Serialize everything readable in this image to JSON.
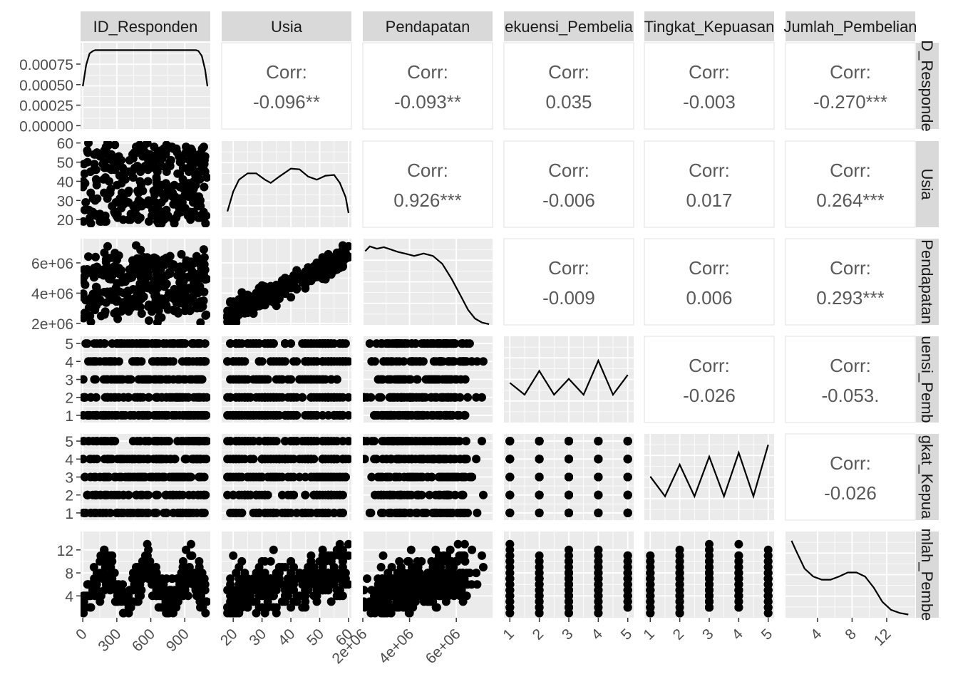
{
  "chart_data": {
    "type": "scatter",
    "variables": [
      "ID_Responden",
      "Usia",
      "Pendapatan",
      "Frekuensi_Pembelian",
      "Tingkat_Kepuasan",
      "Jumlah_Pembelian"
    ],
    "strip_labels_top": [
      "ID_Responden",
      "Usia",
      "Pendapatan",
      "ekuensi_Pembelia",
      "Tingkat_Kepuasan",
      "Jumlah_Pembelian"
    ],
    "strip_labels_right": [
      "D_Responde",
      "Usia",
      "Pendapatan",
      "uensi_Pemb",
      "gkat_Kepua",
      "mlah_Pembe"
    ],
    "correlations": [
      {
        "row": 0,
        "col": 1,
        "label": "Corr:",
        "value": "-0.096**"
      },
      {
        "row": 0,
        "col": 2,
        "label": "Corr:",
        "value": "-0.093**"
      },
      {
        "row": 0,
        "col": 3,
        "label": "Corr:",
        "value": "0.035"
      },
      {
        "row": 0,
        "col": 4,
        "label": "Corr:",
        "value": "-0.003"
      },
      {
        "row": 0,
        "col": 5,
        "label": "Corr:",
        "value": "-0.270***"
      },
      {
        "row": 1,
        "col": 2,
        "label": "Corr:",
        "value": "0.926***"
      },
      {
        "row": 1,
        "col": 3,
        "label": "Corr:",
        "value": "-0.006"
      },
      {
        "row": 1,
        "col": 4,
        "label": "Corr:",
        "value": "0.017"
      },
      {
        "row": 1,
        "col": 5,
        "label": "Corr:",
        "value": "0.264***"
      },
      {
        "row": 2,
        "col": 3,
        "label": "Corr:",
        "value": "-0.009"
      },
      {
        "row": 2,
        "col": 4,
        "label": "Corr:",
        "value": "0.006"
      },
      {
        "row": 2,
        "col": 5,
        "label": "Corr:",
        "value": "0.293***"
      },
      {
        "row": 3,
        "col": 4,
        "label": "Corr:",
        "value": "-0.026"
      },
      {
        "row": 3,
        "col": 5,
        "label": "Corr:",
        "value": "-0.053."
      },
      {
        "row": 4,
        "col": 5,
        "label": "Corr:",
        "value": "-0.026"
      }
    ],
    "x_axes": [
      {
        "range": [
          -20,
          1125
        ],
        "ticks": [
          0,
          300,
          600,
          900
        ],
        "labels": [
          "0",
          "300",
          "600",
          "900"
        ]
      },
      {
        "range": [
          16,
          61
        ],
        "ticks": [
          20,
          30,
          40,
          50,
          60
        ],
        "labels": [
          "20",
          "30",
          "40",
          "50",
          "60"
        ]
      },
      {
        "range": [
          2000000,
          7550000
        ],
        "ticks": [
          2000000,
          4000000,
          6000000
        ],
        "labels": [
          "2e+06",
          "4e+06",
          "6e+06"
        ]
      },
      {
        "range": [
          0.8,
          5.2
        ],
        "ticks": [
          1,
          2,
          3,
          4,
          5
        ],
        "labels": [
          "1",
          "2",
          "3",
          "4",
          "5"
        ]
      },
      {
        "range": [
          0.8,
          5.2
        ],
        "ticks": [
          1,
          2,
          3,
          4,
          5
        ],
        "labels": [
          "1",
          "2",
          "3",
          "4",
          "5"
        ]
      },
      {
        "range": [
          0.3,
          15.3
        ],
        "ticks": [
          4,
          8,
          12
        ],
        "labels": [
          "4",
          "8",
          "12"
        ]
      }
    ],
    "y_axes": [
      {
        "range": [
          -4e-05,
          0.00101
        ],
        "ticks": [
          0,
          0.00025,
          0.0005,
          0.00075
        ],
        "labels": [
          "0.00000",
          "0.00025",
          "0.00050",
          "0.00075"
        ]
      },
      {
        "range": [
          16,
          61
        ],
        "ticks": [
          20,
          30,
          40,
          50,
          60
        ],
        "labels": [
          "20",
          "30",
          "40",
          "50",
          "60"
        ]
      },
      {
        "range": [
          1900000,
          7600000
        ],
        "ticks": [
          2000000,
          4000000,
          6000000
        ],
        "labels": [
          "2e+06",
          "4e+06",
          "6e+06"
        ]
      },
      {
        "range": [
          0.6,
          5.4
        ],
        "ticks": [
          1,
          2,
          3,
          4,
          5
        ],
        "labels": [
          "1",
          "2",
          "3",
          "4",
          "5"
        ]
      },
      {
        "range": [
          0.6,
          5.4
        ],
        "ticks": [
          1,
          2,
          3,
          4,
          5
        ],
        "labels": [
          "1",
          "2",
          "3",
          "4",
          "5"
        ]
      },
      {
        "range": [
          0.2,
          15.2
        ],
        "ticks": [
          4,
          8,
          12
        ],
        "labels": [
          "4",
          "8",
          "12"
        ]
      }
    ],
    "densities": [
      {
        "var": "ID_Responden",
        "x": [
          0,
          30,
          60,
          90,
          110,
          500,
          1000,
          1020,
          1050,
          1080,
          1100
        ],
        "y": [
          0.00048,
          0.00074,
          0.00088,
          0.00091,
          0.00092,
          0.00092,
          0.00092,
          0.00091,
          0.00085,
          0.00068,
          0.00048
        ]
      },
      {
        "var": "Usia",
        "x": [
          18,
          20,
          22,
          25,
          28,
          31,
          33,
          36,
          40,
          43,
          46,
          49,
          52,
          55,
          57,
          59,
          60
        ],
        "y": [
          0.2,
          0.45,
          0.6,
          0.68,
          0.68,
          0.6,
          0.56,
          0.64,
          0.74,
          0.73,
          0.64,
          0.6,
          0.65,
          0.66,
          0.56,
          0.38,
          0.18
        ]
      },
      {
        "var": "Pendapatan",
        "x": [
          2100000,
          2300000,
          2600000,
          2900000,
          3200000,
          3500000,
          3800000,
          4200000,
          4600000,
          5000000,
          5400000,
          5800000,
          6200000,
          6500000,
          6800000,
          7100000,
          7400000
        ],
        "y": [
          0.93,
          0.99,
          0.96,
          0.98,
          0.95,
          0.92,
          0.9,
          0.87,
          0.9,
          0.87,
          0.77,
          0.58,
          0.36,
          0.19,
          0.08,
          0.03,
          0.01
        ]
      },
      {
        "var": "Frekuensi_Pembelian",
        "x": [
          1,
          1.5,
          2,
          2.5,
          3,
          3.5,
          4,
          4.5,
          5
        ],
        "y": [
          0.5,
          0.35,
          0.65,
          0.35,
          0.55,
          0.35,
          0.78,
          0.35,
          0.6
        ]
      },
      {
        "var": "Tingkat_Kepuasan",
        "x": [
          1,
          1.5,
          2,
          2.5,
          3,
          3.5,
          4,
          4.5,
          5
        ],
        "y": [
          0.55,
          0.3,
          0.7,
          0.3,
          0.8,
          0.3,
          0.85,
          0.3,
          0.95
        ]
      },
      {
        "var": "Jumlah_Pembelian",
        "x": [
          1,
          1.5,
          2.5,
          3.5,
          4.5,
          5.5,
          6.5,
          7.5,
          8.5,
          9.5,
          10.5,
          11.5,
          12.5,
          13.5,
          14.5
        ],
        "y": [
          0.97,
          0.85,
          0.62,
          0.52,
          0.48,
          0.48,
          0.52,
          0.57,
          0.57,
          0.52,
          0.38,
          0.2,
          0.1,
          0.06,
          0.04
        ]
      }
    ],
    "grid": true,
    "legend": "none"
  }
}
